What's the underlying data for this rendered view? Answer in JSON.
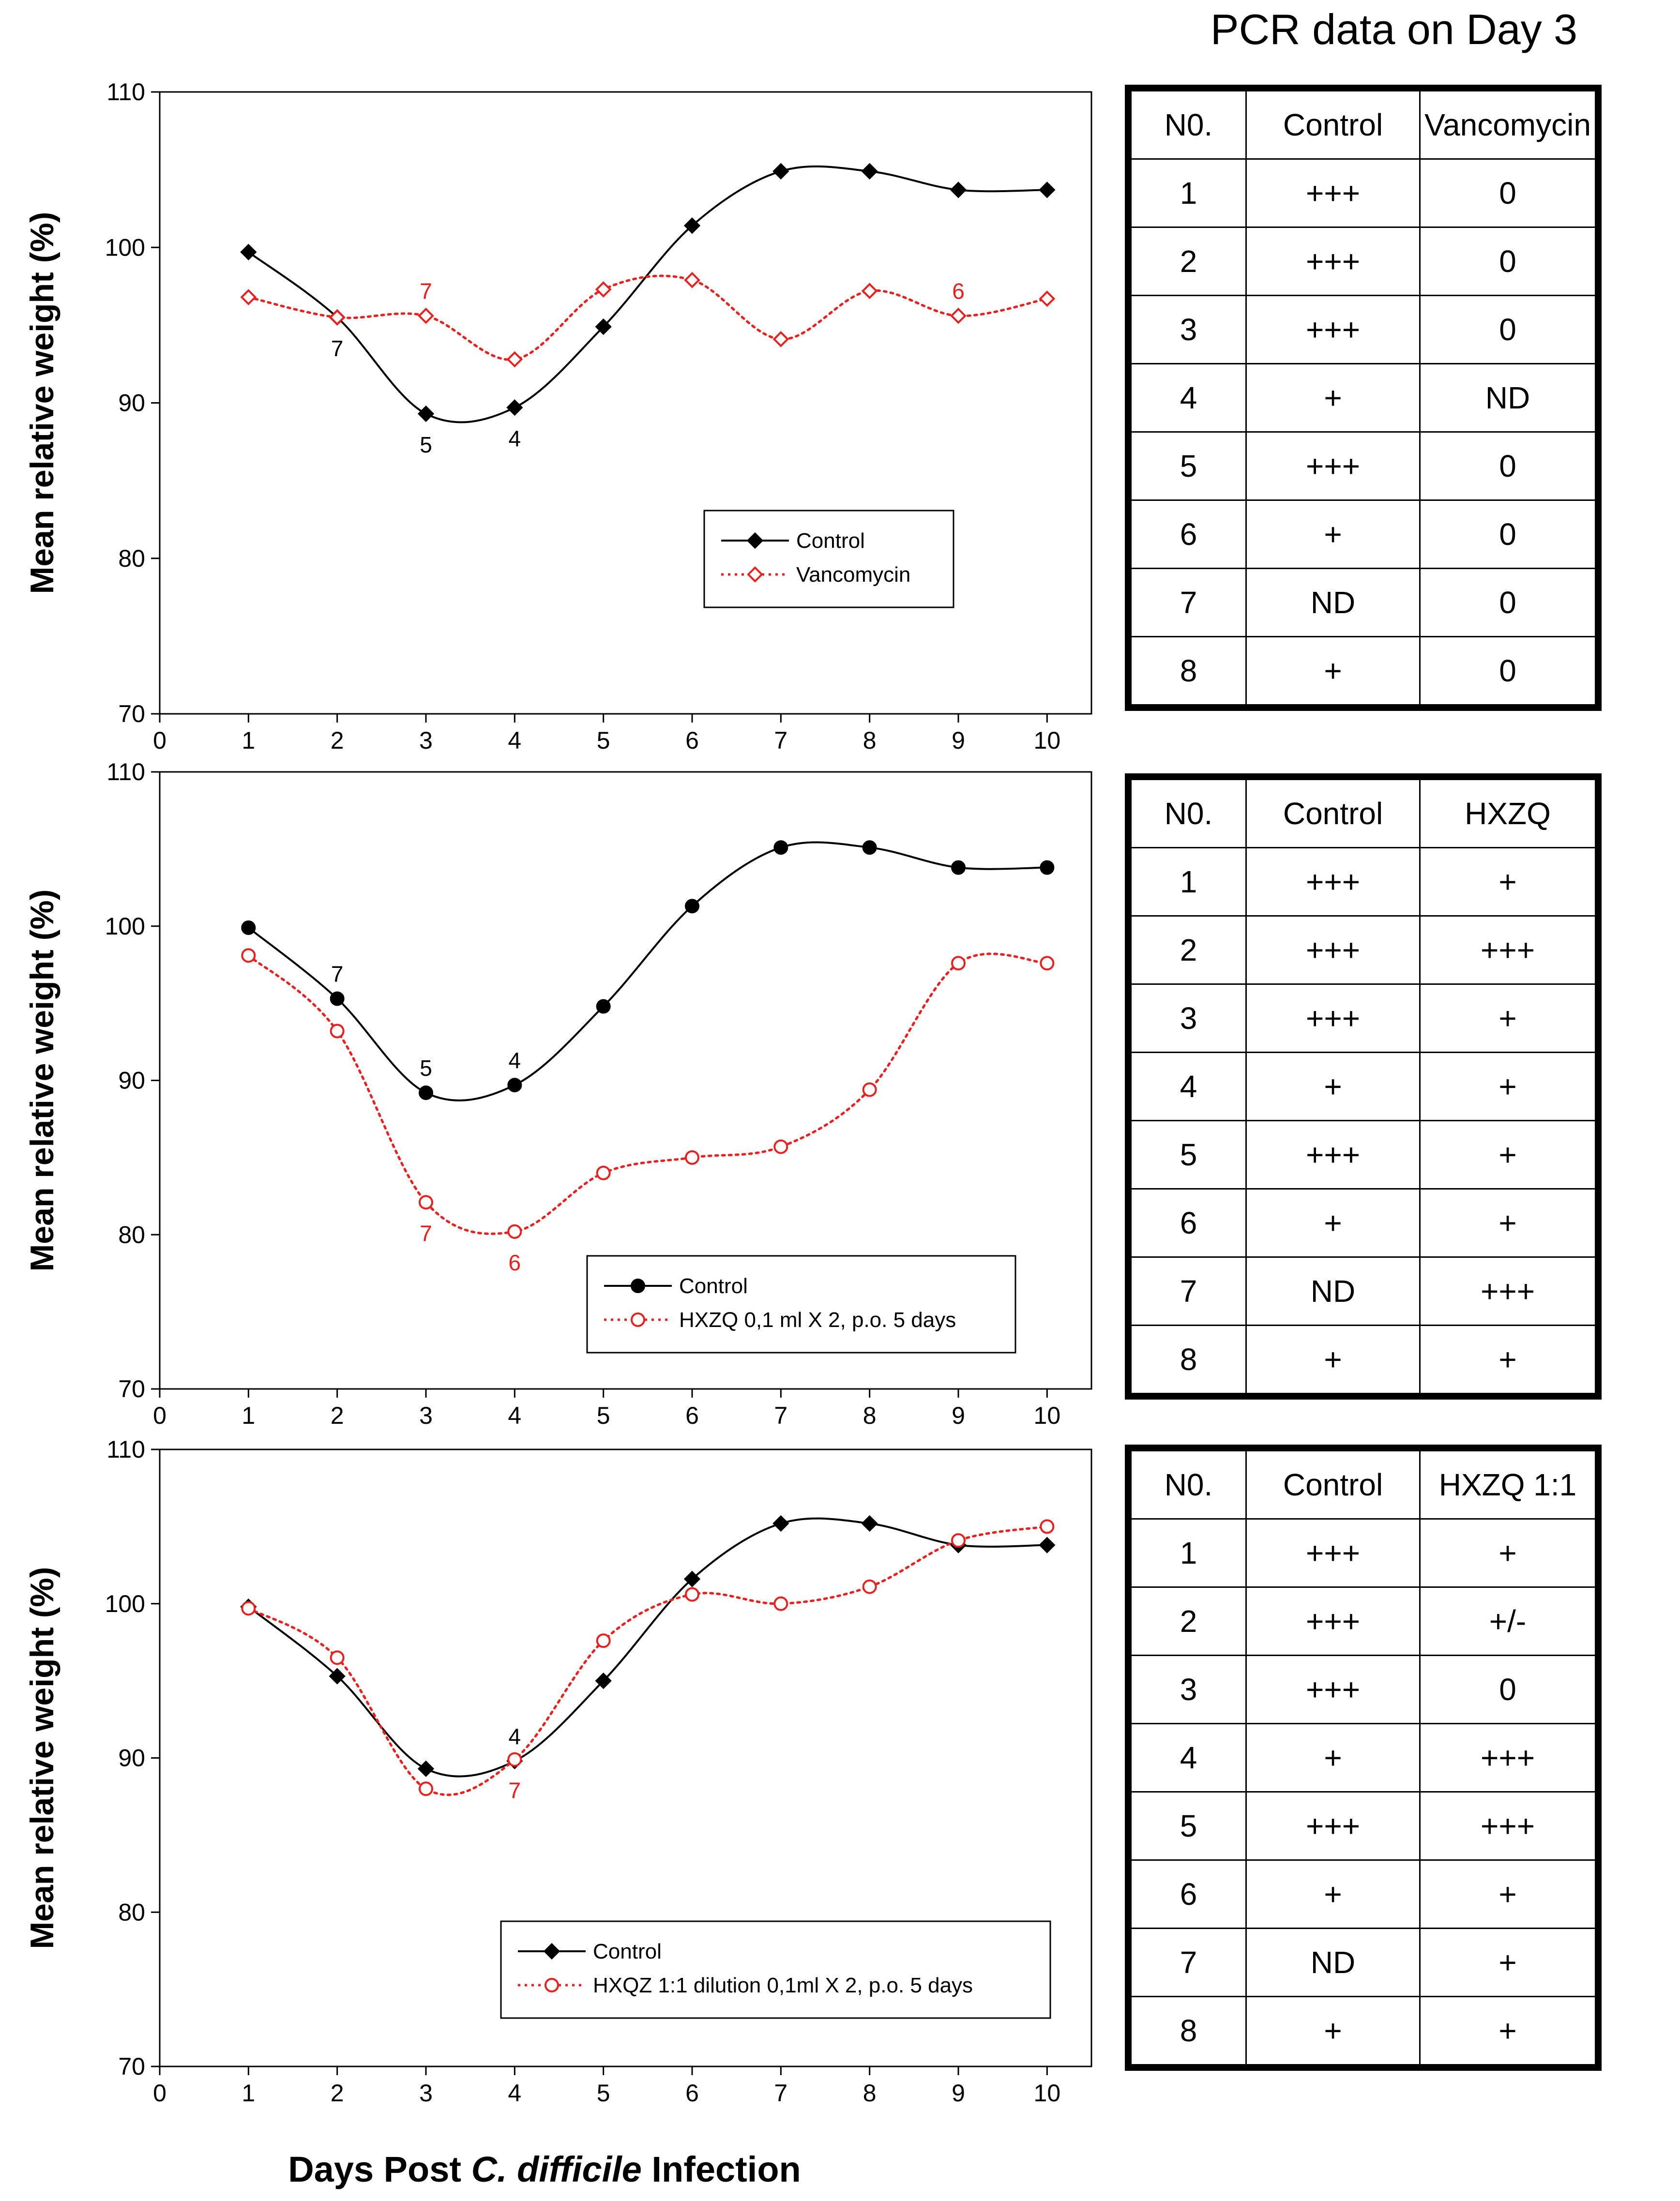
{
  "pcr_title": "PCR data on Day 3",
  "x_axis_title": {
    "prefix": "Days Post ",
    "italic": "C. difficile",
    "suffix": " Infection"
  },
  "colors": {
    "control": "#000000",
    "treatment": "#e8211e",
    "treatment_label": "#e8211e"
  },
  "chart_data": [
    {
      "type": "line",
      "ylabel": "Mean relative weight (%)",
      "ylim": [
        70,
        110
      ],
      "yticks": [
        70,
        80,
        90,
        100,
        110
      ],
      "xlim": [
        0,
        10.5
      ],
      "xticks": [
        0,
        1,
        2,
        3,
        4,
        5,
        6,
        7,
        8,
        9,
        10
      ],
      "legend_position": "lower-center",
      "series": [
        {
          "name": "Control",
          "style": "solid",
          "marker": "filled-diamond",
          "x": [
            1,
            2,
            3,
            4,
            5,
            6,
            7,
            8,
            9,
            10
          ],
          "y": [
            99.7,
            95.5,
            89.3,
            89.7,
            94.9,
            101.4,
            104.9,
            104.9,
            103.7,
            103.7
          ]
        },
        {
          "name": "Vancomycin",
          "style": "dotted",
          "marker": "open-diamond",
          "x": [
            1,
            2,
            3,
            4,
            5,
            6,
            7,
            8,
            9,
            10
          ],
          "y": [
            96.8,
            95.5,
            95.6,
            92.8,
            97.3,
            97.9,
            94.1,
            97.2,
            95.6,
            96.7
          ]
        }
      ],
      "annotations": [
        {
          "text": "7",
          "x": 2,
          "y": 95.5,
          "series": "control",
          "pos": "below"
        },
        {
          "text": "5",
          "x": 3,
          "y": 89.3,
          "series": "control",
          "pos": "below"
        },
        {
          "text": "4",
          "x": 4,
          "y": 89.7,
          "series": "control",
          "pos": "below"
        },
        {
          "text": "7",
          "x": 3,
          "y": 95.6,
          "series": "treatment",
          "pos": "above"
        },
        {
          "text": "6",
          "x": 9,
          "y": 95.6,
          "series": "treatment",
          "pos": "above"
        }
      ]
    },
    {
      "type": "line",
      "ylabel": "Mean relative weight (%)",
      "ylim": [
        70,
        110
      ],
      "yticks": [
        70,
        80,
        90,
        100,
        110
      ],
      "xlim": [
        0,
        10.5
      ],
      "xticks": [
        0,
        1,
        2,
        3,
        4,
        5,
        6,
        7,
        8,
        9,
        10
      ],
      "legend_position": "lower-right",
      "series": [
        {
          "name": "Control",
          "style": "solid",
          "marker": "filled-circle",
          "x": [
            1,
            2,
            3,
            4,
            5,
            6,
            7,
            8,
            9,
            10
          ],
          "y": [
            99.9,
            95.3,
            89.2,
            89.7,
            94.8,
            101.3,
            105.1,
            105.1,
            103.8,
            103.8
          ]
        },
        {
          "name": "HXZQ 0,1 ml X 2, p.o. 5 days",
          "style": "dotted",
          "marker": "open-circle",
          "x": [
            1,
            2,
            3,
            4,
            5,
            6,
            7,
            8,
            9,
            10
          ],
          "y": [
            98.1,
            93.2,
            82.1,
            80.2,
            84.0,
            85.0,
            85.7,
            89.4,
            97.6,
            97.6
          ]
        }
      ],
      "annotations": [
        {
          "text": "7",
          "x": 2,
          "y": 95.3,
          "series": "control",
          "pos": "above"
        },
        {
          "text": "5",
          "x": 3,
          "y": 89.2,
          "series": "control",
          "pos": "above"
        },
        {
          "text": "4",
          "x": 4,
          "y": 89.7,
          "series": "control",
          "pos": "above"
        },
        {
          "text": "7",
          "x": 3,
          "y": 82.1,
          "series": "treatment",
          "pos": "below"
        },
        {
          "text": "6",
          "x": 4,
          "y": 80.2,
          "series": "treatment",
          "pos": "below"
        }
      ]
    },
    {
      "type": "line",
      "ylabel": "Mean relative weight (%)",
      "ylim": [
        70,
        110
      ],
      "yticks": [
        70,
        80,
        90,
        100,
        110
      ],
      "xlim": [
        0,
        10.5
      ],
      "xticks": [
        0,
        1,
        2,
        3,
        4,
        5,
        6,
        7,
        8,
        9,
        10
      ],
      "legend_position": "lower-center",
      "series": [
        {
          "name": "Control",
          "style": "solid",
          "marker": "filled-diamond",
          "x": [
            1,
            2,
            3,
            4,
            5,
            6,
            7,
            8,
            9,
            10
          ],
          "y": [
            99.8,
            95.3,
            89.3,
            89.8,
            95.0,
            101.6,
            105.2,
            105.2,
            103.8,
            103.8
          ]
        },
        {
          "name": "HXQZ 1:1 dilution 0,1ml X 2, p.o. 5 days",
          "style": "dotted",
          "marker": "open-circle",
          "x": [
            1,
            2,
            3,
            4,
            5,
            6,
            7,
            8,
            9,
            10
          ],
          "y": [
            99.7,
            96.5,
            88.0,
            89.9,
            97.6,
            100.6,
            100.0,
            101.1,
            104.1,
            105.0
          ]
        }
      ],
      "annotations": [
        {
          "text": "4",
          "x": 4,
          "y": 89.8,
          "series": "control",
          "pos": "above"
        },
        {
          "text": "7",
          "x": 4,
          "y": 89.9,
          "series": "treatment",
          "pos": "below"
        }
      ]
    }
  ],
  "tables": [
    {
      "headers": [
        "N0.",
        "Control",
        "Vancomycin"
      ],
      "rows": [
        [
          "1",
          "+++",
          "0"
        ],
        [
          "2",
          "+++",
          "0"
        ],
        [
          "3",
          "+++",
          "0"
        ],
        [
          "4",
          "+",
          "ND"
        ],
        [
          "5",
          "+++",
          "0"
        ],
        [
          "6",
          "+",
          "0"
        ],
        [
          "7",
          "ND",
          "0"
        ],
        [
          "8",
          "+",
          "0"
        ]
      ]
    },
    {
      "headers": [
        "N0.",
        "Control",
        "HXZQ"
      ],
      "rows": [
        [
          "1",
          "+++",
          "+"
        ],
        [
          "2",
          "+++",
          "+++"
        ],
        [
          "3",
          "+++",
          "+"
        ],
        [
          "4",
          "+",
          "+"
        ],
        [
          "5",
          "+++",
          "+"
        ],
        [
          "6",
          "+",
          "+"
        ],
        [
          "7",
          "ND",
          "+++"
        ],
        [
          "8",
          "+",
          "+"
        ]
      ]
    },
    {
      "headers": [
        "N0.",
        "Control",
        "HXZQ 1:1"
      ],
      "rows": [
        [
          "1",
          "+++",
          "+"
        ],
        [
          "2",
          "+++",
          "+/-"
        ],
        [
          "3",
          "+++",
          "0"
        ],
        [
          "4",
          "+",
          "+++"
        ],
        [
          "5",
          "+++",
          "+++"
        ],
        [
          "6",
          "+",
          "+"
        ],
        [
          "7",
          "ND",
          "+"
        ],
        [
          "8",
          "+",
          "+"
        ]
      ]
    }
  ]
}
